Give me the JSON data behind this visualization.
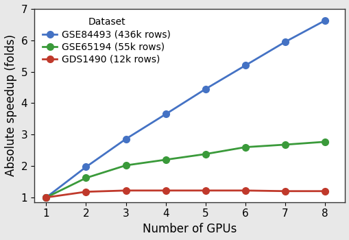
{
  "x": [
    1,
    2,
    3,
    4,
    5,
    6,
    7,
    8
  ],
  "blue_y": [
    1.0,
    1.97,
    2.86,
    3.65,
    4.45,
    5.2,
    5.95,
    6.63
  ],
  "green_y": [
    1.0,
    1.62,
    2.02,
    2.2,
    2.38,
    2.6,
    2.68,
    2.77
  ],
  "red_y": [
    1.0,
    1.18,
    1.22,
    1.22,
    1.22,
    1.22,
    1.2,
    1.2
  ],
  "blue_color": "#4472c4",
  "green_color": "#3a9a3a",
  "red_color": "#c0392b",
  "blue_label": "GSE84493 (436k rows)",
  "green_label": "GSE65194 (55k rows)",
  "red_label": "GDS1490 (12k rows)",
  "legend_title": "Dataset",
  "xlabel": "Number of GPUs",
  "ylabel": "Absolute speedup (folds)",
  "xlim": [
    0.7,
    8.5
  ],
  "ylim": [
    0.85,
    7.0
  ],
  "yticks": [
    1,
    2,
    3,
    4,
    5,
    6,
    7
  ],
  "xticks": [
    1,
    2,
    3,
    4,
    5,
    6,
    7,
    8
  ],
  "marker": "o",
  "markersize": 7,
  "linewidth": 2.0,
  "label_fontsize": 12,
  "tick_fontsize": 11,
  "legend_fontsize": 10,
  "fig_facecolor": "#e8e8e8"
}
